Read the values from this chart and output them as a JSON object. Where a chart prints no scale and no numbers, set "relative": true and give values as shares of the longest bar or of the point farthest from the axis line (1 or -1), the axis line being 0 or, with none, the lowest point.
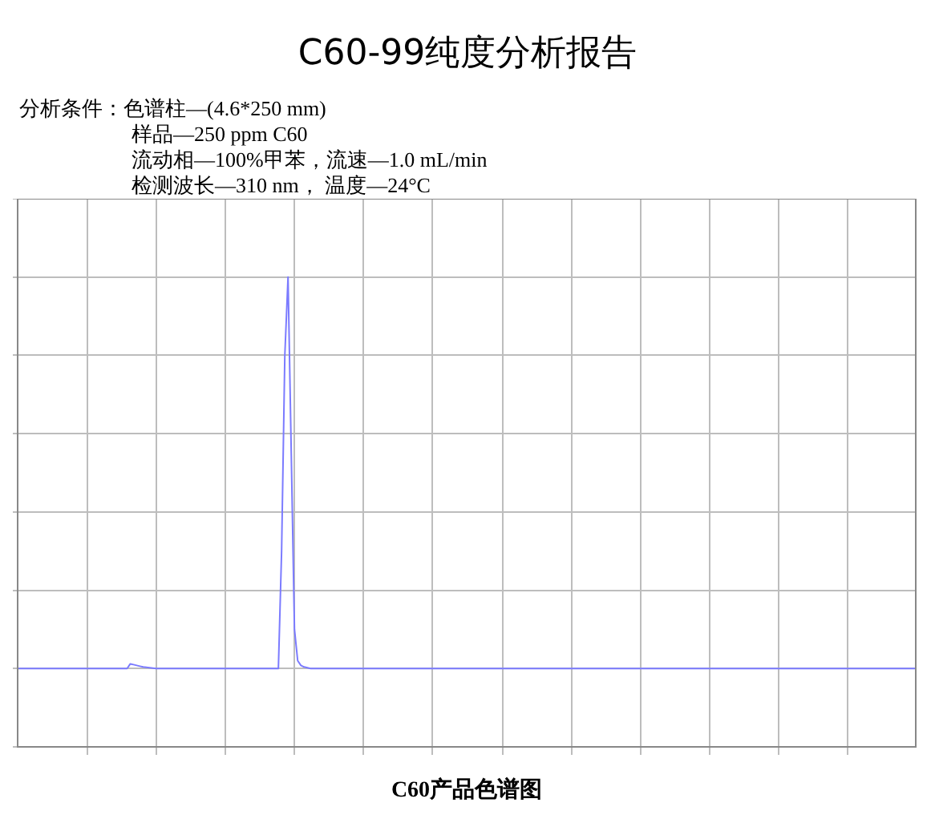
{
  "chart_data": {
    "type": "line",
    "title": "C60-99纯度分析报告",
    "annotations": [
      "分析条件：色谱柱—(4.6*250 mm)",
      "样品—250 ppm C60",
      "流动相—100%甲苯，流速—1.0 mL/min",
      "检测波长—310 nm， 温度—24°C"
    ],
    "xlabel": "C60产品色谱图",
    "relative": true,
    "categories": [
      null,
      null,
      null,
      null,
      null,
      null,
      null,
      null,
      null,
      null,
      null,
      null,
      null,
      null,
      null,
      null,
      null,
      null,
      null,
      null,
      null,
      null,
      null,
      null,
      null,
      null,
      null,
      null,
      null,
      null,
      null,
      null,
      null,
      null,
      null,
      null,
      null,
      null,
      null,
      null,
      null,
      null,
      null,
      null,
      null,
      null,
      null,
      null,
      null,
      null,
      null,
      null,
      null,
      null,
      null,
      null,
      null,
      null,
      null,
      null,
      null,
      null,
      null,
      null,
      null,
      null,
      null,
      null,
      null,
      null,
      null,
      null,
      null,
      null,
      null,
      null,
      null,
      null,
      null,
      null,
      null,
      null,
      null,
      null,
      null,
      null,
      null,
      null,
      null,
      null,
      null,
      null,
      null,
      null,
      null,
      null,
      null,
      null,
      null,
      null,
      null,
      null,
      null,
      null,
      null,
      null,
      null,
      null,
      null,
      null,
      null,
      null,
      null,
      null,
      null,
      null,
      null,
      null,
      null,
      null,
      null,
      null,
      null,
      null,
      null,
      null,
      null,
      null,
      null,
      null,
      null,
      null,
      null,
      null,
      null,
      null,
      null,
      null,
      null,
      null,
      null,
      null,
      null,
      null,
      null,
      null,
      null,
      null,
      null,
      null,
      null,
      null,
      null,
      null,
      null,
      null,
      null,
      null,
      null,
      null,
      null,
      null,
      null,
      null,
      null,
      null,
      null,
      null,
      null,
      null,
      null,
      null,
      null,
      null,
      null,
      null,
      null,
      null,
      null,
      null,
      null,
      null,
      null,
      null,
      null,
      null,
      null,
      null,
      null,
      null,
      null,
      null,
      null,
      null,
      null,
      null,
      null,
      null,
      null,
      null,
      null,
      null,
      null,
      null,
      null,
      null,
      null,
      null,
      null,
      null,
      null,
      null,
      null,
      null,
      null,
      null,
      null,
      null,
      null,
      null,
      null,
      null,
      null,
      null,
      null,
      null,
      null,
      null,
      null,
      null,
      null,
      null,
      null,
      null,
      null,
      null,
      null,
      null,
      null,
      null,
      null,
      null,
      null,
      null,
      null,
      null,
      null,
      null,
      null,
      null,
      null,
      null,
      null,
      null,
      null,
      null,
      null,
      null,
      null,
      null,
      null,
      null,
      null,
      null,
      null,
      null,
      null,
      null,
      null,
      null,
      null,
      null,
      null,
      null,
      null,
      null,
      null,
      null,
      null,
      null
    ],
    "series": [
      {
        "color": "#7b7bff",
        "values": [
          0,
          0,
          0,
          0,
          0,
          0,
          0,
          0,
          0,
          0,
          0,
          0,
          0,
          0,
          0,
          0,
          0,
          0,
          0,
          0,
          0,
          0,
          0,
          0,
          0,
          0,
          0,
          0,
          0,
          0,
          0,
          0,
          0,
          0,
          0,
          0.012,
          0.01,
          0.008,
          0.006,
          0.004,
          0.003,
          0.002,
          0.001,
          0,
          0,
          0,
          0,
          0,
          0,
          0,
          0,
          0,
          0,
          0,
          0,
          0,
          0,
          0,
          0,
          0,
          0,
          0,
          0,
          0,
          0,
          0,
          0,
          0,
          0,
          0,
          0,
          0,
          0,
          0,
          0,
          0,
          0,
          0,
          0,
          0,
          0,
          0,
          0.3,
          0.8,
          1,
          0.55,
          0.1,
          0.02,
          0.008,
          0.004,
          0.002,
          0,
          0,
          0,
          0,
          0,
          0,
          0,
          0,
          0,
          0,
          0,
          0,
          0,
          0,
          0,
          0,
          0,
          0,
          0,
          0,
          0,
          0,
          0,
          0,
          0,
          0,
          0,
          0,
          0,
          0,
          0,
          0,
          0,
          0,
          0,
          0,
          0,
          0,
          0,
          0,
          0,
          0,
          0,
          0,
          0,
          0,
          0,
          0,
          0,
          0,
          0,
          0,
          0,
          0,
          0,
          0,
          0,
          0,
          0,
          0,
          0,
          0,
          0,
          0,
          0,
          0,
          0,
          0,
          0,
          0,
          0,
          0,
          0,
          0,
          0,
          0,
          0,
          0,
          0,
          0,
          0,
          0,
          0,
          0,
          0,
          0,
          0,
          0,
          0,
          0,
          0,
          0,
          0,
          0,
          0,
          0,
          0,
          0,
          0,
          0,
          0,
          0,
          0,
          0,
          0,
          0,
          0,
          0,
          0,
          0,
          0,
          0,
          0,
          0,
          0,
          0,
          0,
          0,
          0,
          0,
          0,
          0,
          0,
          0,
          0,
          0,
          0,
          0,
          0,
          0,
          0,
          0,
          0,
          0,
          0,
          0,
          0,
          0,
          0,
          0,
          0,
          0,
          0,
          0,
          0,
          0,
          0,
          0,
          0,
          0,
          0,
          0,
          0,
          0,
          0,
          0,
          0,
          0,
          0,
          0,
          0,
          0,
          0,
          0,
          0,
          0,
          0,
          0,
          0,
          0,
          0,
          0,
          0,
          0,
          0,
          0,
          0,
          0,
          0,
          0,
          0,
          0,
          0,
          0,
          0,
          0,
          0,
          0,
          0
        ]
      }
    ],
    "grid": true,
    "legend": false,
    "marker": "none",
    "line_style": "solid"
  }
}
